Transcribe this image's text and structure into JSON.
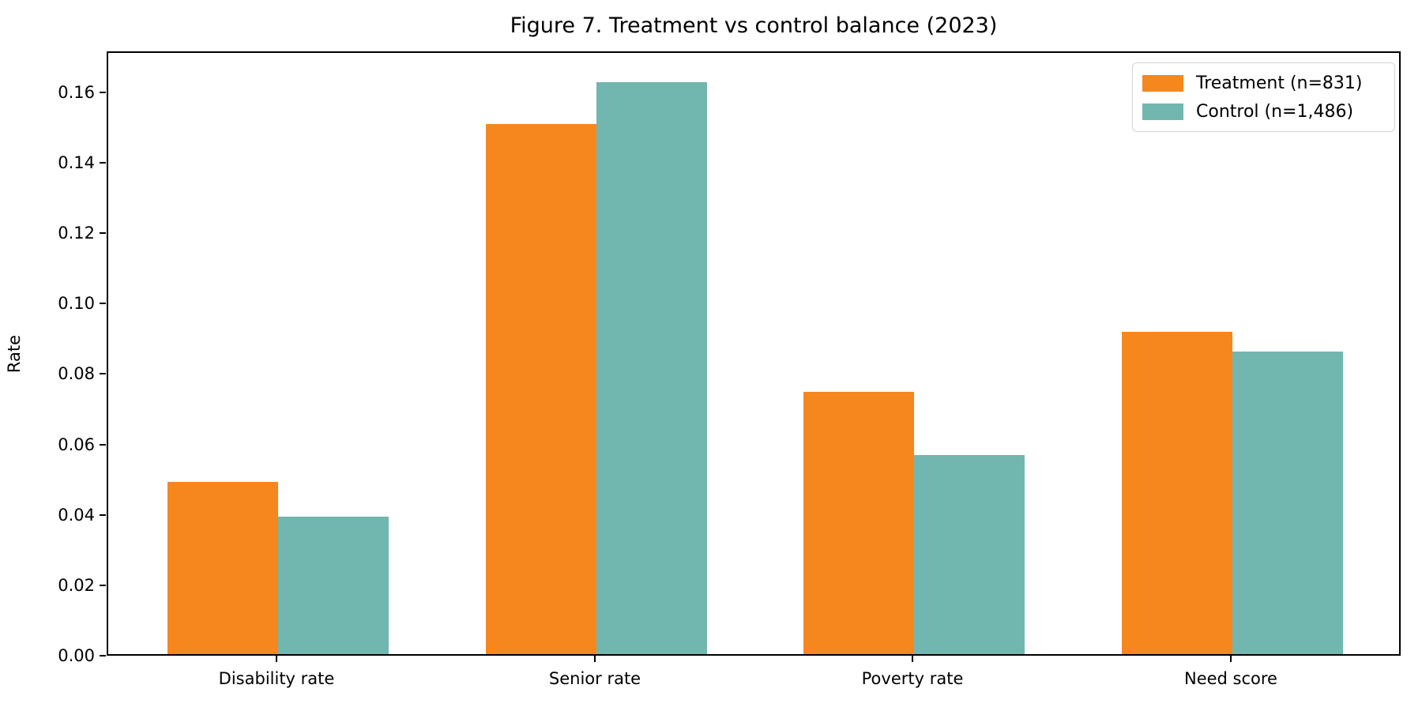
{
  "figure": {
    "title": "Figure 7. Treatment vs control balance (2023)",
    "ylabel": "Rate"
  },
  "chart_data": {
    "type": "bar",
    "title": "Figure 7. Treatment vs control balance (2023)",
    "xlabel": "",
    "ylabel": "Rate",
    "categories": [
      "Disability rate",
      "Senior rate",
      "Poverty rate",
      "Need score"
    ],
    "series": [
      {
        "name": "Treatment (n=831)",
        "color": "#f5871e",
        "values": [
          0.049,
          0.1505,
          0.0745,
          0.0915
        ]
      },
      {
        "name": "Control (n=1,486)",
        "color": "#72b6b0",
        "values": [
          0.039,
          0.1625,
          0.0565,
          0.086
        ]
      }
    ],
    "ylim": [
      0,
      0.1716
    ],
    "ytick_labels": [
      "0.00",
      "0.02",
      "0.04",
      "0.06",
      "0.08",
      "0.10",
      "0.12",
      "0.14",
      "0.16"
    ],
    "grid": false,
    "legend_position": "upper right",
    "bar_group_width_fraction": 0.7
  },
  "legend": {
    "items": [
      {
        "label": "Treatment (n=831)"
      },
      {
        "label": "Control (n=1,486)"
      }
    ]
  }
}
